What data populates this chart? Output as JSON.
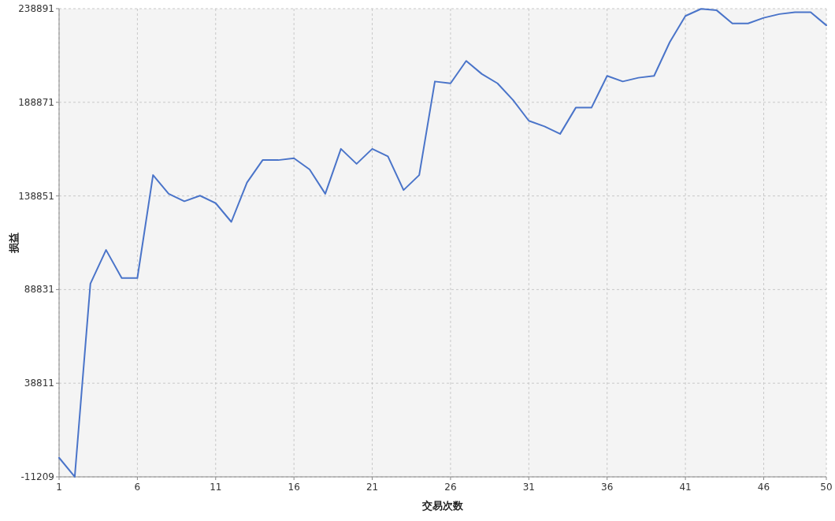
{
  "chart_data": {
    "type": "line",
    "xlabel": "交易次数",
    "ylabel": "损益",
    "x": [
      1,
      2,
      3,
      4,
      5,
      6,
      7,
      8,
      9,
      10,
      11,
      12,
      13,
      14,
      15,
      16,
      17,
      18,
      19,
      20,
      21,
      22,
      23,
      24,
      25,
      26,
      27,
      28,
      29,
      30,
      31,
      32,
      33,
      34,
      35,
      36,
      37,
      38,
      39,
      40,
      41,
      42,
      43,
      44,
      45,
      46,
      47,
      48,
      49,
      50
    ],
    "series": [
      {
        "color": "#4a74c9",
        "values": [
          -1000,
          -11200,
          92000,
          110000,
          95000,
          95000,
          150000,
          140000,
          136000,
          139000,
          135000,
          125000,
          146000,
          158000,
          158000,
          159000,
          153000,
          140000,
          164000,
          156000,
          164000,
          160000,
          142000,
          150000,
          200000,
          199000,
          211000,
          204000,
          199000,
          190000,
          179000,
          176000,
          172000,
          186000,
          186000,
          203000,
          200000,
          202000,
          203000,
          221000,
          235000,
          238800,
          238000,
          231000,
          231000,
          234000,
          236000,
          237000,
          237000,
          230000
        ]
      }
    ],
    "xlim": [
      1,
      50
    ],
    "xticks": [
      1,
      6,
      11,
      16,
      21,
      26,
      31,
      36,
      41,
      46,
      50
    ],
    "ylim": [
      -11209,
      238891
    ],
    "yticks": [
      -11209,
      38811,
      88831,
      138851,
      188871,
      238891
    ],
    "grid": true,
    "line_style": "solid",
    "marker": "none"
  }
}
